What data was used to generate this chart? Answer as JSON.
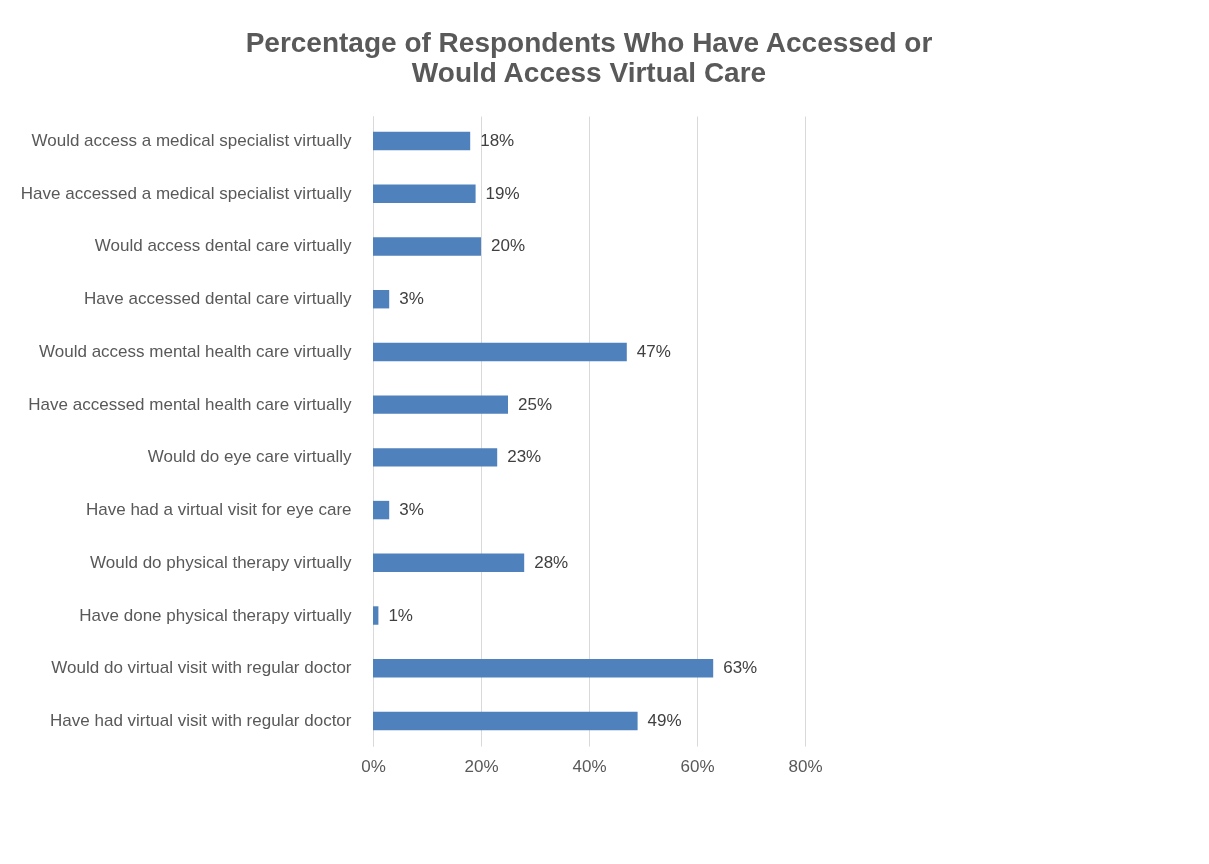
{
  "chart_data": {
    "type": "bar",
    "orientation": "horizontal",
    "title": "Percentage of Respondents Who Have Accessed or  Would Access Virtual Care",
    "categories": [
      "Would access a medical specialist virtually",
      "Have accessed a medical specialist virtually",
      "Would access dental care virtually",
      "Have accessed dental care virtually",
      "Would access mental health care virtually",
      "Have accessed mental health care virtually",
      "Would do eye care virtually",
      "Have had a virtual visit for eye care",
      "Would do physical therapy virtually",
      "Have done physical therapy virtually",
      "Would do virtual visit with regular doctor",
      "Have had virtual visit with regular doctor"
    ],
    "values": [
      18,
      19,
      20,
      3,
      47,
      25,
      23,
      3,
      28,
      1,
      63,
      49
    ],
    "value_labels": [
      "18%",
      "19%",
      "20%",
      "3%",
      "47%",
      "25%",
      "23%",
      "3%",
      "28%",
      "1%",
      "63%",
      "49%"
    ],
    "color": "#4f81bd",
    "xlim": [
      0,
      80
    ],
    "xticks": [
      {
        "value": 0,
        "label": "0%"
      },
      {
        "value": 20,
        "label": "20%"
      },
      {
        "value": 40,
        "label": "40%"
      },
      {
        "value": 60,
        "label": "60%"
      },
      {
        "value": 80,
        "label": "80%"
      }
    ],
    "grid": "x"
  }
}
